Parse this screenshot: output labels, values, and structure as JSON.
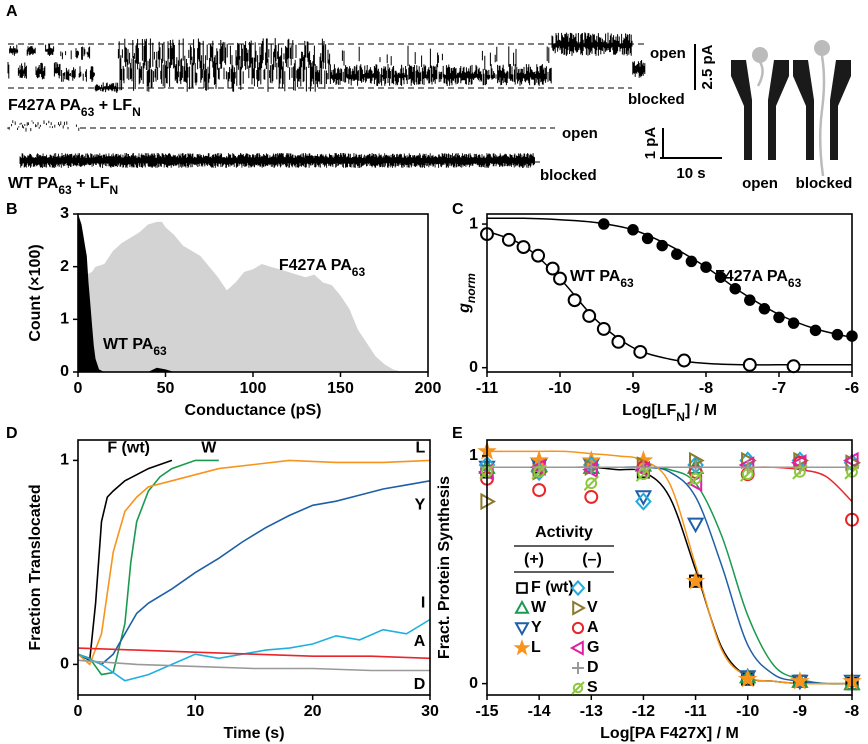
{
  "panel_a": {
    "panel": "A",
    "traces": [
      {
        "label": [
          "F427A PA",
          "63",
          " + LF",
          "N"
        ],
        "open": "open",
        "blocked": "blocked",
        "scale_y": "2.5 pA"
      },
      {
        "label": [
          "WT PA",
          "63",
          " + LF",
          "N"
        ],
        "open": "open",
        "blocked": "blocked",
        "scale_y": "1 pA"
      }
    ],
    "scale_x": "10 s",
    "cartoon": {
      "open": "open",
      "blocked": "blocked"
    }
  },
  "chart_data": [
    {
      "panel": "B",
      "type": "area",
      "xlabel": "Conductance (pS)",
      "ylabel": "Count (×100)",
      "xlim": [
        0,
        200
      ],
      "xticks": [
        0,
        50,
        100,
        150,
        200
      ],
      "ylim": [
        0,
        3
      ],
      "yticks": [
        0,
        1,
        2,
        3
      ],
      "series": [
        {
          "name": [
            "F427A PA",
            "63"
          ],
          "color": "#d3d3d3",
          "label_color": "#9a9a9a",
          "x": [
            0,
            3,
            5,
            8,
            10,
            15,
            20,
            25,
            30,
            35,
            40,
            45,
            48,
            50,
            55,
            60,
            65,
            70,
            75,
            80,
            85,
            90,
            95,
            100,
            105,
            110,
            115,
            120,
            125,
            130,
            135,
            140,
            145,
            150,
            155,
            160,
            165,
            170,
            175,
            180,
            185
          ],
          "values": [
            0,
            1.6,
            1.85,
            1.9,
            2.0,
            2.05,
            2.3,
            2.45,
            2.55,
            2.65,
            2.8,
            2.85,
            2.85,
            2.75,
            2.6,
            2.4,
            2.3,
            2.2,
            2.0,
            1.8,
            1.55,
            1.7,
            1.9,
            1.95,
            2.05,
            2.0,
            1.95,
            1.9,
            1.85,
            1.8,
            1.85,
            1.7,
            1.65,
            1.45,
            1.2,
            0.8,
            0.55,
            0.3,
            0.15,
            0.05,
            0
          ]
        },
        {
          "name": [
            "WT PA",
            "63"
          ],
          "color": "#000000",
          "label_color": "#000000",
          "x": [
            0,
            1,
            2,
            3,
            4,
            5,
            6,
            7,
            8,
            9,
            10,
            12,
            15,
            40,
            45,
            50,
            55
          ],
          "values": [
            3.0,
            2.9,
            2.8,
            2.6,
            2.4,
            2.2,
            1.7,
            1.3,
            0.9,
            0.5,
            0.25,
            0.05,
            0,
            0,
            0.08,
            0.05,
            0
          ]
        }
      ]
    },
    {
      "panel": "C",
      "type": "scatter",
      "xlabel": [
        "Log[LF",
        "N",
        "] / M"
      ],
      "ylabel": [
        "g",
        "norm"
      ],
      "xlim": [
        -11,
        -6
      ],
      "xticks": [
        -11,
        -10,
        -9,
        -8,
        -7,
        -6
      ],
      "ylim": [
        -0.03,
        1.07
      ],
      "yticks": [
        0,
        1
      ],
      "series": [
        {
          "name": [
            "WT PA",
            "63"
          ],
          "color": "#000000",
          "marker": "circle",
          "x": [
            -11,
            -10.7,
            -10.5,
            -10.3,
            -10.1,
            -10,
            -9.8,
            -9.6,
            -9.4,
            -9.2,
            -8.9,
            -8.3,
            -7.4,
            -6.8
          ],
          "values": [
            0.93,
            0.89,
            0.84,
            0.78,
            0.69,
            0.62,
            0.47,
            0.36,
            0.27,
            0.18,
            0.11,
            0.05,
            0.02,
            0.01
          ],
          "fit": {
            "x": [
              -11,
              -10.5,
              -10,
              -9.5,
              -9,
              -8.5,
              -8,
              -7.5,
              -7,
              -6.5,
              -6
            ],
            "values": [
              0.95,
              0.85,
              0.62,
              0.33,
              0.14,
              0.06,
              0.03,
              0.02,
              0.02,
              0.02,
              0.02
            ]
          }
        },
        {
          "name": [
            "F427A PA",
            "63"
          ],
          "color": "#000000",
          "marker": "filled-circle",
          "x": [
            -9.4,
            -9,
            -8.8,
            -8.6,
            -8.4,
            -8.2,
            -8,
            -7.8,
            -7.6,
            -7.4,
            -7.2,
            -7,
            -6.8,
            -6.5,
            -6.2,
            -6
          ],
          "values": [
            1.0,
            0.96,
            0.9,
            0.85,
            0.79,
            0.74,
            0.7,
            0.63,
            0.55,
            0.47,
            0.41,
            0.35,
            0.31,
            0.26,
            0.23,
            0.22
          ],
          "fit": {
            "x": [
              -11,
              -10.5,
              -10,
              -9.5,
              -9,
              -8.5,
              -8,
              -7.5,
              -7,
              -6.5,
              -6
            ],
            "values": [
              1.04,
              1.04,
              1.03,
              1.01,
              0.96,
              0.85,
              0.7,
              0.52,
              0.37,
              0.27,
              0.21
            ]
          }
        }
      ]
    },
    {
      "panel": "D",
      "type": "line",
      "xlabel": "Time (s)",
      "ylabel": "Fraction Translocated",
      "xlim": [
        0,
        30
      ],
      "xticks": [
        0,
        10,
        20,
        30
      ],
      "ylim": [
        -0.15,
        1.1
      ],
      "yticks": [
        0,
        1
      ],
      "series": [
        {
          "name": "F (wt)",
          "color": "#000000",
          "x": [
            0,
            1,
            1.5,
            2,
            2.5,
            3,
            4,
            5,
            6,
            7,
            8
          ],
          "values": [
            0.05,
            0.02,
            0.3,
            0.7,
            0.82,
            0.85,
            0.9,
            0.93,
            0.96,
            0.98,
            1.0
          ]
        },
        {
          "name": "W",
          "color": "#1a9a50",
          "x": [
            0,
            1,
            2,
            3,
            4,
            4.5,
            5,
            6,
            7,
            8,
            9,
            10,
            11,
            12
          ],
          "values": [
            0.05,
            0.03,
            -0.05,
            -0.04,
            0.2,
            0.5,
            0.7,
            0.85,
            0.92,
            0.96,
            0.98,
            1.0,
            1.0,
            1.0
          ]
        },
        {
          "name": "L",
          "color": "#f7941d",
          "x": [
            0,
            1,
            2,
            3,
            4,
            5,
            6,
            8,
            10,
            12,
            15,
            18,
            22,
            26,
            30
          ],
          "values": [
            0.05,
            0.0,
            0.15,
            0.55,
            0.75,
            0.82,
            0.87,
            0.9,
            0.93,
            0.96,
            0.98,
            1.0,
            0.99,
            0.99,
            1.0
          ]
        },
        {
          "name": "Y",
          "color": "#1f5fa8",
          "x": [
            0,
            2,
            3,
            4,
            5,
            6,
            8,
            10,
            12,
            14,
            16,
            18,
            20,
            22,
            24,
            26,
            28,
            30
          ],
          "values": [
            0.05,
            0.0,
            0.05,
            0.15,
            0.25,
            0.3,
            0.37,
            0.45,
            0.52,
            0.6,
            0.67,
            0.73,
            0.78,
            0.8,
            0.83,
            0.86,
            0.88,
            0.9
          ]
        },
        {
          "name": "I",
          "color": "#20b0e0",
          "x": [
            0,
            2,
            4,
            6,
            8,
            10,
            12,
            14,
            16,
            18,
            20,
            22,
            24,
            26,
            28,
            30
          ],
          "values": [
            0.05,
            0.0,
            -0.08,
            -0.05,
            0.0,
            0.05,
            0.03,
            0.05,
            0.07,
            0.08,
            0.1,
            0.14,
            0.12,
            0.17,
            0.15,
            0.22
          ]
        },
        {
          "name": "A",
          "color": "#e8262b",
          "x": [
            0,
            5,
            10,
            15,
            20,
            25,
            30
          ],
          "values": [
            0.08,
            0.07,
            0.06,
            0.05,
            0.04,
            0.04,
            0.03
          ]
        },
        {
          "name": "D",
          "color": "#999999",
          "x": [
            0,
            5,
            10,
            15,
            20,
            25,
            30
          ],
          "values": [
            0.02,
            0.0,
            -0.01,
            -0.02,
            -0.02,
            -0.03,
            -0.03
          ]
        }
      ]
    },
    {
      "panel": "E",
      "type": "scatter",
      "xlabel": "Log[PA F427X] / M",
      "ylabel": "Fract. Protein Synthesis",
      "xlim": [
        -15,
        -8
      ],
      "xticks": [
        -15,
        -14,
        -13,
        -12,
        -11,
        -10,
        -9,
        -8
      ],
      "ylim": [
        -0.05,
        1.07
      ],
      "yticks": [
        0,
        1
      ],
      "legend": {
        "title": "Activity",
        "groups": [
          "(+)",
          "(–)"
        ]
      },
      "x": [
        -15,
        -14,
        -13,
        -12,
        -11,
        -10,
        -9,
        -8
      ],
      "fit_x": [
        -15,
        -14.5,
        -14,
        -13.5,
        -13,
        -12.5,
        -12,
        -11.5,
        -11,
        -10.5,
        -10,
        -9.5,
        -9,
        -8.5,
        -8
      ],
      "series": [
        {
          "name": "F (wt)",
          "color": "#000000",
          "marker": "square",
          "legend_group": 0,
          "values": [
            0.93,
            0.95,
            0.95,
            0.93,
            0.45,
            0.02,
            0.01,
            0.0
          ],
          "fit": [
            0.95,
            0.95,
            0.95,
            0.95,
            0.95,
            0.94,
            0.93,
            0.82,
            0.5,
            0.16,
            0.03,
            0.01,
            0.0,
            0.0,
            0.0
          ]
        },
        {
          "name": "W",
          "color": "#1a9a50",
          "marker": "triangle-up",
          "legend_group": 0,
          "values": [
            0.95,
            0.96,
            0.95,
            0.96,
            0.95,
            0.03,
            0.01,
            0.0
          ],
          "fit": [
            0.95,
            0.95,
            0.95,
            0.95,
            0.95,
            0.95,
            0.95,
            0.94,
            0.88,
            0.65,
            0.3,
            0.08,
            0.02,
            0.0,
            0.0
          ]
        },
        {
          "name": "Y",
          "color": "#1f5fa8",
          "marker": "triangle-down",
          "legend_group": 0,
          "values": [
            0.95,
            0.96,
            0.96,
            0.82,
            0.7,
            0.03,
            0.01,
            0.01
          ],
          "fit": [
            0.95,
            0.95,
            0.95,
            0.95,
            0.95,
            0.95,
            0.95,
            0.93,
            0.82,
            0.52,
            0.17,
            0.04,
            0.01,
            0.0,
            0.0
          ]
        },
        {
          "name": "L",
          "color": "#f7941d",
          "marker": "star",
          "legend_group": 0,
          "values": [
            1.02,
            0.98,
            0.98,
            0.98,
            0.45,
            0.02,
            0.01,
            0.01
          ],
          "fit": [
            1.02,
            1.02,
            1.02,
            1.02,
            1.01,
            1.0,
            0.98,
            0.88,
            0.52,
            0.15,
            0.03,
            0.01,
            0.0,
            0.0,
            0.0
          ]
        },
        {
          "name": "I",
          "color": "#22aadd",
          "marker": "diamond",
          "legend_group": 1,
          "values": [
            0.96,
            0.93,
            0.96,
            0.8,
            0.96,
            0.98,
            0.98,
            0.97
          ]
        },
        {
          "name": "V",
          "color": "#8b7a2b",
          "marker": "triangle-right",
          "legend_group": 1,
          "values": [
            0.8,
            0.93,
            0.95,
            0.96,
            0.98,
            0.98,
            0.98,
            0.97
          ]
        },
        {
          "name": "A",
          "color": "#e8262b",
          "marker": "circle",
          "legend_group": 1,
          "values": [
            0.9,
            0.85,
            0.82,
            0.95,
            0.93,
            0.92,
            0.97,
            0.72
          ],
          "fit": [
            0.95,
            0.95,
            0.95,
            0.95,
            0.95,
            0.95,
            0.95,
            0.95,
            0.95,
            0.95,
            0.95,
            0.95,
            0.94,
            0.91,
            0.8
          ]
        },
        {
          "name": "G",
          "color": "#e020a0",
          "marker": "triangle-left",
          "legend_group": 1,
          "values": [
            0.93,
            0.95,
            0.94,
            0.94,
            0.88,
            0.96,
            0.97,
            0.98
          ]
        },
        {
          "name": "D",
          "color": "#999999",
          "marker": "plus",
          "legend_group": 1,
          "values": [
            0.95,
            0.95,
            0.95,
            0.95,
            0.95,
            0.95,
            0.95,
            0.95
          ],
          "fit": [
            0.95,
            0.95,
            0.95,
            0.95,
            0.95,
            0.95,
            0.95,
            0.95,
            0.95,
            0.95,
            0.95,
            0.95,
            0.95,
            0.95,
            0.95
          ]
        },
        {
          "name": "S",
          "color": "#8dc63f",
          "marker": "slashed-circle",
          "legend_group": 1,
          "values": [
            0.93,
            0.93,
            0.88,
            0.92,
            0.9,
            0.92,
            0.93,
            0.93
          ]
        }
      ]
    }
  ]
}
